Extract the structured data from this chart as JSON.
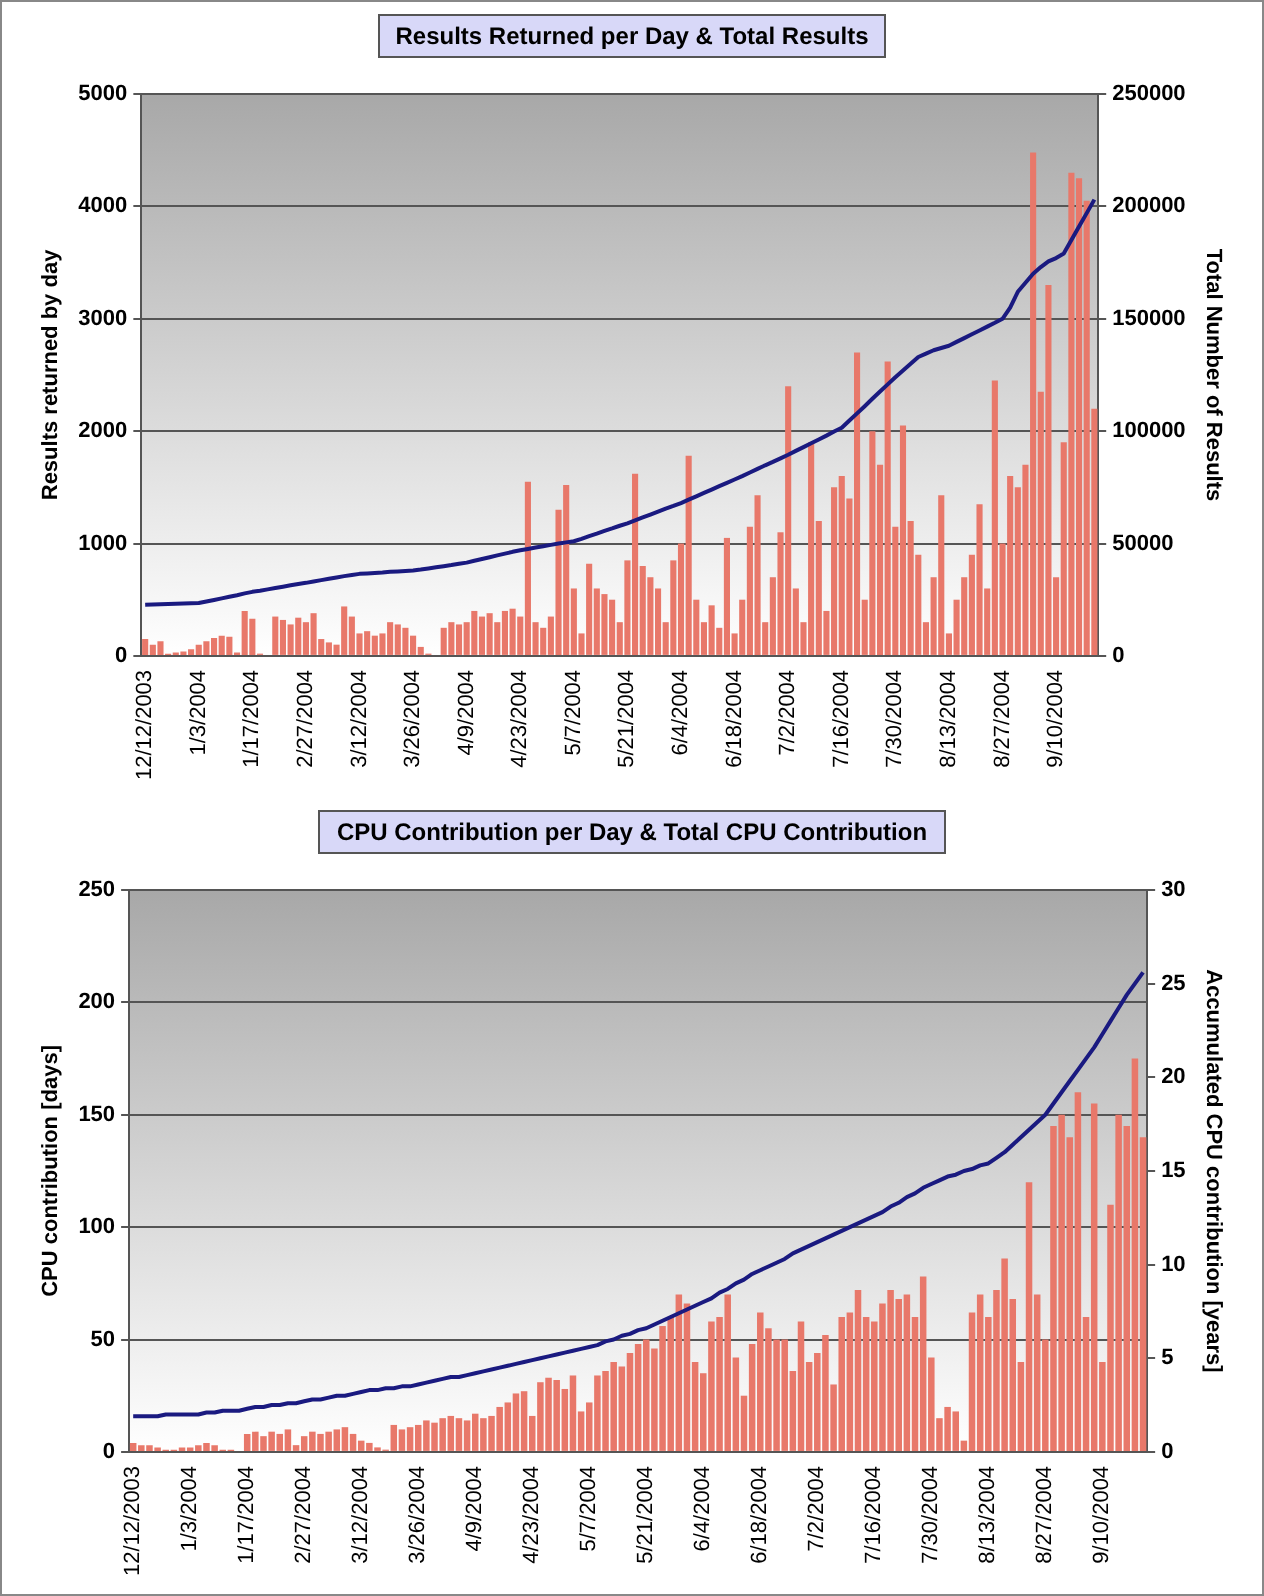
{
  "chart_data": [
    {
      "type": "bar",
      "title": "Results Returned per Day & Total Results",
      "ylabel": "Results returned by day",
      "y2label": "Total Number of Results",
      "categories": [
        "12/12/2003",
        null,
        null,
        null,
        null,
        null,
        null,
        "1/3/2004",
        null,
        null,
        null,
        null,
        null,
        null,
        "1/17/2004",
        null,
        null,
        null,
        null,
        null,
        null,
        "2/27/2004",
        null,
        null,
        null,
        null,
        null,
        null,
        "3/12/2004",
        null,
        null,
        null,
        null,
        null,
        null,
        "3/26/2004",
        null,
        null,
        null,
        null,
        null,
        null,
        "4/9/2004",
        null,
        null,
        null,
        null,
        null,
        null,
        "4/23/2004",
        null,
        null,
        null,
        null,
        null,
        null,
        "5/7/2004",
        null,
        null,
        null,
        null,
        null,
        null,
        "5/21/2004",
        null,
        null,
        null,
        null,
        null,
        null,
        "6/4/2004",
        null,
        null,
        null,
        null,
        null,
        null,
        "6/18/2004",
        null,
        null,
        null,
        null,
        null,
        null,
        "7/2/2004",
        null,
        null,
        null,
        null,
        null,
        null,
        "7/16/2004",
        null,
        null,
        null,
        null,
        null,
        null,
        "7/30/2004",
        null,
        null,
        null,
        null,
        null,
        null,
        "8/13/2004",
        null,
        null,
        null,
        null,
        null,
        null,
        "8/27/2004",
        null,
        null,
        null,
        null,
        null,
        null,
        "9/10/2004",
        null,
        null,
        null,
        null,
        null
      ],
      "series": [
        {
          "color": "#e8786a",
          "values": [
            150,
            100,
            130,
            20,
            30,
            40,
            60,
            100,
            130,
            160,
            180,
            170,
            30,
            400,
            330,
            20,
            0,
            350,
            320,
            280,
            340,
            300,
            380,
            150,
            120,
            100,
            440,
            350,
            200,
            220,
            180,
            200,
            300,
            280,
            250,
            180,
            80,
            20,
            0,
            250,
            300,
            280,
            300,
            400,
            350,
            380,
            300,
            400,
            420,
            350,
            1550,
            300,
            250,
            350,
            1300,
            1520,
            600,
            200,
            820,
            600,
            550,
            500,
            300,
            850,
            1620,
            800,
            700,
            600,
            300,
            850,
            1000,
            1780,
            500,
            300,
            450,
            250,
            1050,
            200,
            500,
            1150,
            1430,
            300,
            700,
            1100,
            2400,
            600,
            300,
            1900,
            1200,
            400,
            1500,
            1600,
            1400,
            2700,
            500,
            2000,
            1700,
            2620,
            1150,
            2050,
            1200,
            900,
            300,
            700,
            1430,
            200,
            500,
            700,
            900,
            1350,
            600,
            2450,
            1000,
            1600,
            1500,
            1700,
            4480,
            2350,
            3300,
            700,
            1900,
            4300,
            4250,
            4050,
            2200
          ]
        },
        {
          "type": "line",
          "axis": "y2",
          "color": "#1a1a80",
          "values": [
            22800,
            22900,
            23000,
            23100,
            23200,
            23300,
            23400,
            23500,
            24200,
            24900,
            25600,
            26300,
            27000,
            27800,
            28500,
            29000,
            29600,
            30200,
            30800,
            31400,
            32000,
            32500,
            33100,
            33700,
            34300,
            34900,
            35500,
            36000,
            36500,
            36700,
            36900,
            37100,
            37400,
            37600,
            37800,
            38000,
            38400,
            38900,
            39400,
            39900,
            40400,
            41000,
            41500,
            42300,
            43100,
            43900,
            44700,
            45500,
            46300,
            47000,
            47600,
            48200,
            48800,
            49400,
            50000,
            50500,
            51000,
            52100,
            53300,
            54400,
            55600,
            56700,
            57900,
            59000,
            60300,
            61600,
            62900,
            64200,
            65500,
            66700,
            68000,
            69500,
            71000,
            72500,
            74000,
            75500,
            77000,
            78500,
            80000,
            81600,
            83200,
            84800,
            86300,
            87900,
            89500,
            91200,
            92900,
            94600,
            96300,
            98000,
            99800,
            101500,
            104700,
            107900,
            111100,
            114400,
            117600,
            120800,
            124000,
            127000,
            130000,
            133000,
            134500,
            136000,
            137000,
            138000,
            139700,
            141400,
            143100,
            144800,
            146500,
            148200,
            150000,
            155000,
            162000,
            166000,
            170000,
            173000,
            175500,
            177000,
            179000,
            185000,
            191000,
            197000,
            203000
          ]
        }
      ],
      "ylim": [
        0,
        5000
      ],
      "yticks": [
        0,
        1000,
        2000,
        3000,
        4000,
        5000
      ],
      "y2lim": [
        0,
        250000
      ],
      "y2ticks": [
        0,
        50000,
        100000,
        150000,
        200000,
        250000
      ],
      "grid": "y",
      "legend": false,
      "marker": "none"
    },
    {
      "type": "bar",
      "title": "CPU Contribution per Day & Total CPU Contribution",
      "ylabel": "CPU contribution [days]",
      "y2label": "Accumulated CPU contribution [years]",
      "categories": [
        "12/12/2003",
        null,
        null,
        null,
        null,
        null,
        null,
        "1/3/2004",
        null,
        null,
        null,
        null,
        null,
        null,
        "1/17/2004",
        null,
        null,
        null,
        null,
        null,
        null,
        "2/27/2004",
        null,
        null,
        null,
        null,
        null,
        null,
        "3/12/2004",
        null,
        null,
        null,
        null,
        null,
        null,
        "3/26/2004",
        null,
        null,
        null,
        null,
        null,
        null,
        "4/9/2004",
        null,
        null,
        null,
        null,
        null,
        null,
        "4/23/2004",
        null,
        null,
        null,
        null,
        null,
        null,
        "5/7/2004",
        null,
        null,
        null,
        null,
        null,
        null,
        "5/21/2004",
        null,
        null,
        null,
        null,
        null,
        null,
        "6/4/2004",
        null,
        null,
        null,
        null,
        null,
        null,
        "6/18/2004",
        null,
        null,
        null,
        null,
        null,
        null,
        "7/2/2004",
        null,
        null,
        null,
        null,
        null,
        null,
        "7/16/2004",
        null,
        null,
        null,
        null,
        null,
        null,
        "7/30/2004",
        null,
        null,
        null,
        null,
        null,
        null,
        "8/13/2004",
        null,
        null,
        null,
        null,
        null,
        null,
        "8/27/2004",
        null,
        null,
        null,
        null,
        null,
        null,
        "9/10/2004",
        null,
        null,
        null,
        null,
        null
      ],
      "series": [
        {
          "color": "#e8786a",
          "values": [
            4,
            3,
            3,
            2,
            1,
            1,
            2,
            2,
            3,
            4,
            3,
            1,
            1,
            0,
            8,
            9,
            7,
            9,
            8,
            10,
            3,
            7,
            9,
            8,
            9,
            10,
            11,
            8,
            5,
            4,
            2,
            1,
            12,
            10,
            11,
            12,
            14,
            13,
            15,
            16,
            15,
            14,
            17,
            15,
            16,
            20,
            22,
            26,
            27,
            16,
            31,
            33,
            32,
            28,
            34,
            18,
            22,
            34,
            36,
            40,
            38,
            44,
            48,
            50,
            46,
            56,
            60,
            70,
            66,
            40,
            35,
            58,
            60,
            70,
            42,
            25,
            48,
            62,
            55,
            50,
            50,
            36,
            58,
            40,
            44,
            52,
            30,
            60,
            62,
            72,
            60,
            58,
            66,
            72,
            68,
            70,
            60,
            78,
            42,
            15,
            20,
            18,
            5,
            62,
            70,
            60,
            72,
            86,
            68,
            40,
            120,
            70,
            50,
            145,
            150,
            140,
            160,
            60,
            155,
            40,
            110,
            150,
            145,
            175,
            140
          ]
        },
        {
          "type": "line",
          "axis": "y2",
          "color": "#1a1a80",
          "values": [
            1.9,
            1.9,
            1.9,
            1.9,
            2.0,
            2.0,
            2.0,
            2.0,
            2.0,
            2.1,
            2.1,
            2.2,
            2.2,
            2.2,
            2.3,
            2.4,
            2.4,
            2.5,
            2.5,
            2.6,
            2.6,
            2.7,
            2.8,
            2.8,
            2.9,
            3.0,
            3.0,
            3.1,
            3.2,
            3.3,
            3.3,
            3.4,
            3.4,
            3.5,
            3.5,
            3.6,
            3.7,
            3.8,
            3.9,
            4.0,
            4.0,
            4.1,
            4.2,
            4.3,
            4.4,
            4.5,
            4.6,
            4.7,
            4.8,
            4.9,
            5.0,
            5.1,
            5.2,
            5.3,
            5.4,
            5.5,
            5.6,
            5.7,
            5.9,
            6.0,
            6.2,
            6.3,
            6.5,
            6.6,
            6.8,
            7.0,
            7.2,
            7.4,
            7.6,
            7.8,
            8.0,
            8.2,
            8.5,
            8.7,
            9.0,
            9.2,
            9.5,
            9.7,
            9.9,
            10.1,
            10.3,
            10.6,
            10.8,
            11.0,
            11.2,
            11.4,
            11.6,
            11.8,
            12.0,
            12.2,
            12.4,
            12.6,
            12.8,
            13.1,
            13.3,
            13.6,
            13.8,
            14.1,
            14.3,
            14.5,
            14.7,
            14.8,
            15.0,
            15.1,
            15.3,
            15.4,
            15.7,
            16.0,
            16.4,
            16.8,
            17.2,
            17.6,
            18.0,
            18.6,
            19.2,
            19.8,
            20.4,
            21.0,
            21.6,
            22.3,
            23.0,
            23.7,
            24.4,
            25.0,
            25.6
          ]
        }
      ],
      "ylim": [
        0,
        250
      ],
      "yticks": [
        0,
        50,
        100,
        150,
        200,
        250
      ],
      "y2lim": [
        0,
        30
      ],
      "y2ticks": [
        0,
        5,
        10,
        15,
        20,
        25,
        30
      ],
      "grid": "y",
      "legend": false,
      "marker": "none"
    }
  ]
}
